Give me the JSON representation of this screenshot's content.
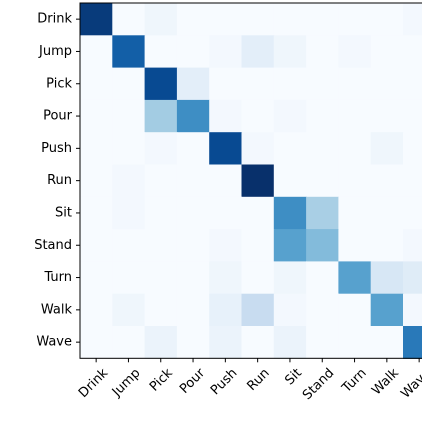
{
  "chart_data": {
    "type": "heatmap",
    "title": "",
    "xlabel": "",
    "ylabel": "",
    "colormap": "Blues",
    "grid": false,
    "row_labels": [
      "Drink",
      "Jump",
      "Pick",
      "Pour",
      "Push",
      "Run",
      "Sit",
      "Stand",
      "Turn",
      "Walk",
      "Wave"
    ],
    "col_labels": [
      "Drink",
      "Jump",
      "Pick",
      "Pour",
      "Push",
      "Run",
      "Sit",
      "Stand",
      "Turn",
      "Walk",
      "Wave"
    ],
    "values": [
      [
        0.96,
        0.0,
        0.04,
        0.0,
        0.0,
        0.0,
        0.0,
        0.0,
        0.0,
        0.0,
        0.02
      ],
      [
        0.0,
        0.82,
        0.0,
        0.0,
        0.02,
        0.1,
        0.04,
        0.0,
        0.02,
        0.0,
        0.0
      ],
      [
        0.0,
        0.0,
        0.9,
        0.1,
        0.0,
        0.0,
        0.0,
        0.0,
        0.0,
        0.0,
        0.0
      ],
      [
        0.0,
        0.0,
        0.36,
        0.64,
        0.02,
        0.0,
        0.02,
        0.0,
        0.0,
        0.0,
        0.0
      ],
      [
        0.0,
        0.0,
        0.02,
        0.0,
        0.9,
        0.02,
        0.0,
        0.0,
        0.0,
        0.04,
        0.0
      ],
      [
        0.0,
        0.02,
        0.0,
        0.0,
        0.0,
        1.0,
        0.0,
        0.0,
        0.0,
        0.0,
        0.0
      ],
      [
        0.0,
        0.02,
        0.0,
        0.0,
        0.0,
        0.0,
        0.64,
        0.34,
        0.0,
        0.0,
        0.0
      ],
      [
        0.0,
        0.0,
        0.0,
        0.0,
        0.02,
        0.0,
        0.56,
        0.44,
        0.0,
        0.0,
        0.02
      ],
      [
        0.0,
        0.0,
        0.0,
        0.0,
        0.04,
        0.0,
        0.04,
        0.0,
        0.56,
        0.16,
        0.12
      ],
      [
        0.0,
        0.04,
        0.0,
        0.0,
        0.08,
        0.24,
        0.02,
        0.0,
        0.0,
        0.56,
        0.02
      ],
      [
        0.0,
        0.0,
        0.06,
        0.0,
        0.06,
        0.0,
        0.06,
        0.0,
        0.0,
        0.0,
        0.72
      ]
    ]
  }
}
